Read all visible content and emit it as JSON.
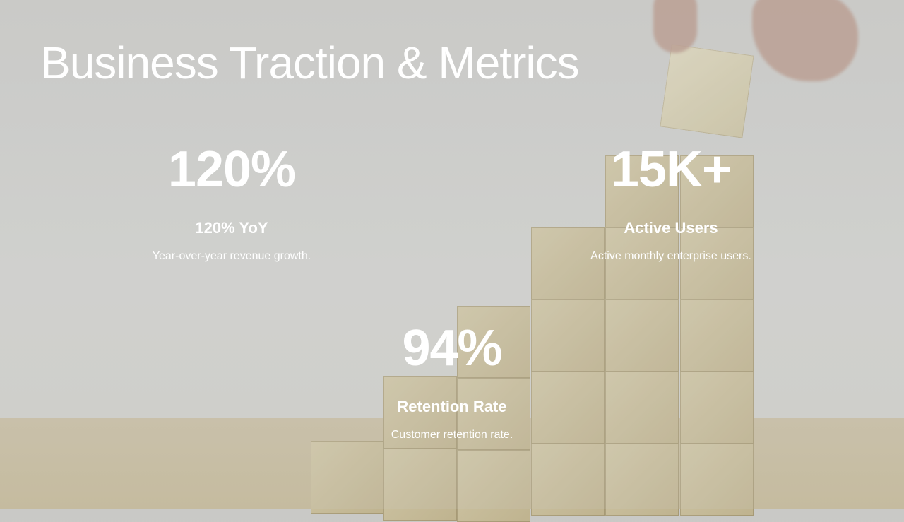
{
  "slide": {
    "title": "Business Traction & Metrics",
    "metrics": [
      {
        "value": "120%",
        "label": "120% YoY",
        "description": "Year-over-year revenue growth."
      },
      {
        "value": "15K+",
        "label": "Active Users",
        "description": "Active monthly enterprise users."
      },
      {
        "value": "94%",
        "label": "Retention Rate",
        "description": "Customer retention rate."
      }
    ]
  },
  "colors": {
    "text": "#ffffff",
    "background": "#cbcbc8",
    "wood": "#c9bf9f"
  }
}
